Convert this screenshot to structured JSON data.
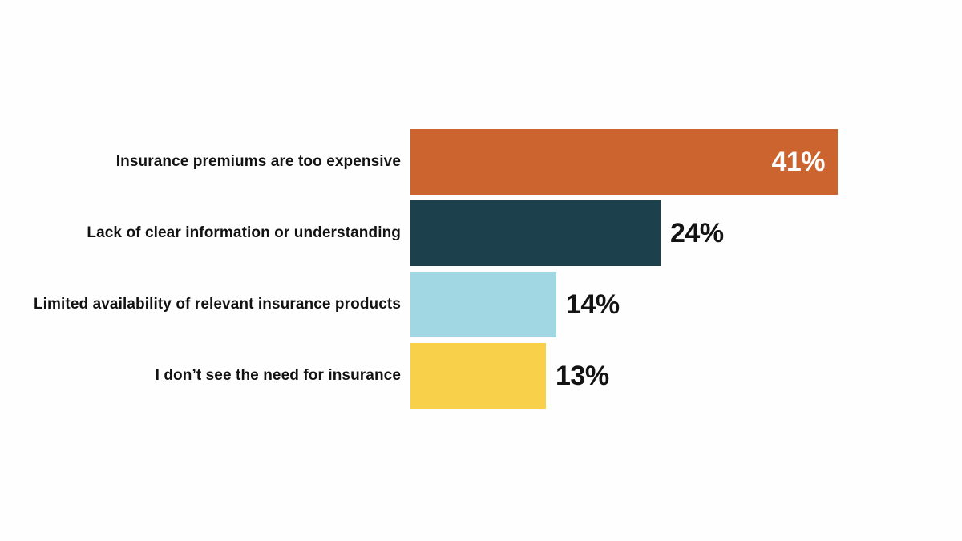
{
  "page": {
    "background": "#fefefe",
    "text_color": "#121212"
  },
  "chart_data": {
    "type": "bar",
    "orientation": "horizontal",
    "categories": [
      "Insurance premiums are too expensive",
      "Lack of clear information or understanding",
      "Limited availability of relevant insurance products",
      "I don’t see the need for insurance"
    ],
    "values": [
      41,
      24,
      14,
      13
    ],
    "value_labels": [
      "41%",
      "24%",
      "14%",
      "13%"
    ],
    "bar_colors": [
      "#cc6430",
      "#1c404c",
      "#a0d7e3",
      "#f8d04a"
    ],
    "value_label_placement": [
      "inside",
      "outside",
      "outside",
      "outside"
    ],
    "value_label_colors": [
      "#ffffff",
      "#131313",
      "#131313",
      "#131313"
    ],
    "xlim": [
      0,
      41
    ],
    "grid": false,
    "legend": false,
    "axis_labels_visible": false,
    "title": ""
  }
}
